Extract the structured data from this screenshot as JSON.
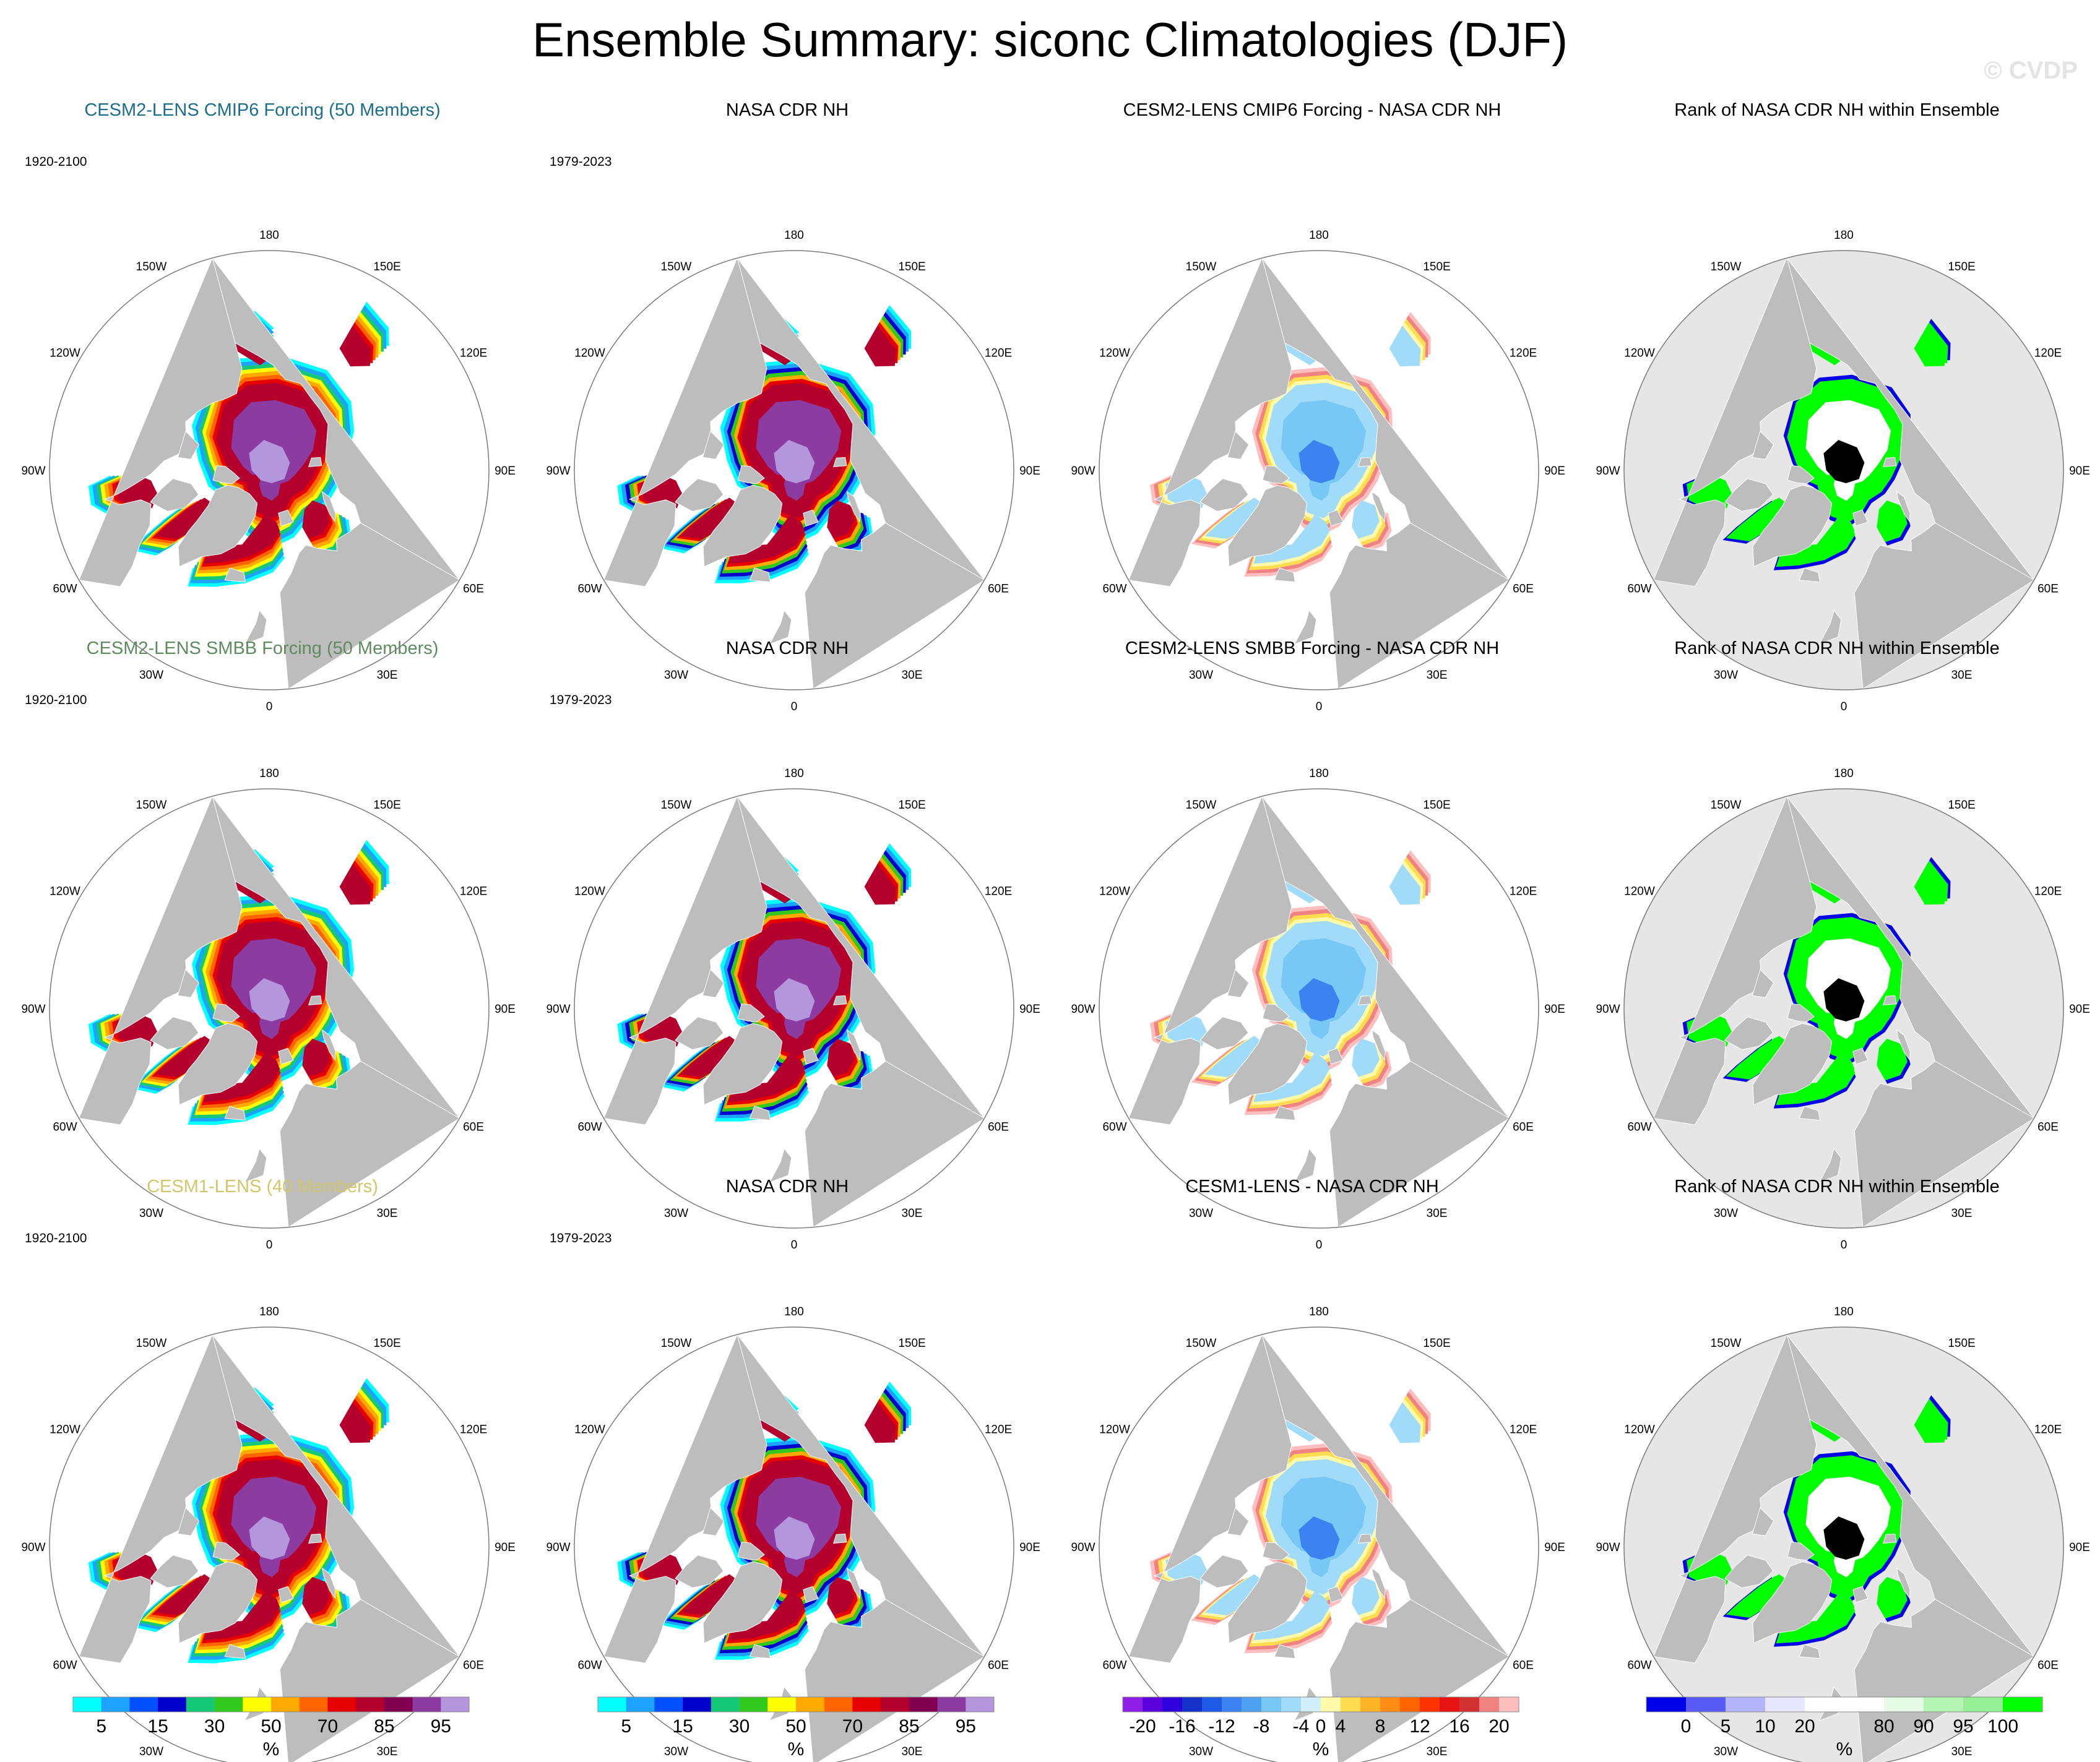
{
  "title": "Ensemble Summary: siconc Climatologies (DJF)",
  "watermark": "© CVDP",
  "colors": {
    "land": "#bdbdbd",
    "ocean": "#ffffff",
    "rank_background": "#e6e6e6",
    "title_cmip6": "#1b6e8c",
    "title_smbb": "#5e8c5e",
    "title_cesm1": "#d2c66a"
  },
  "lon_labels": [
    "180",
    "150E",
    "120E",
    "90E",
    "60E",
    "30E",
    "0",
    "30W",
    "60W",
    "90W",
    "120W",
    "150W"
  ],
  "rows": [
    {
      "ensemble": {
        "title": "CESM2-LENS CMIP6 Forcing (50 Members)",
        "period": "1920-2100",
        "title_color": "#1b6e8c"
      },
      "obs": {
        "title": "NASA CDR NH",
        "period": "1979-2023"
      },
      "diff": {
        "title": "CESM2-LENS CMIP6 Forcing - NASA CDR NH"
      },
      "rank": {
        "title": "Rank of NASA CDR NH within Ensemble"
      }
    },
    {
      "ensemble": {
        "title": "CESM2-LENS SMBB Forcing (50 Members)",
        "period": "1920-2100",
        "title_color": "#5e8c5e"
      },
      "obs": {
        "title": "NASA CDR NH",
        "period": "1979-2023"
      },
      "diff": {
        "title": "CESM2-LENS SMBB Forcing - NASA CDR NH"
      },
      "rank": {
        "title": "Rank of NASA CDR NH within Ensemble"
      }
    },
    {
      "ensemble": {
        "title": "CESM1-LENS (40 Members)",
        "period": "1920-2100",
        "title_color": "#d2c66a"
      },
      "obs": {
        "title": "NASA CDR NH",
        "period": "1979-2023"
      },
      "diff": {
        "title": "CESM1-LENS - NASA CDR NH"
      },
      "rank": {
        "title": "Rank of NASA CDR NH within Ensemble"
      }
    }
  ],
  "colorbars": [
    {
      "unit": "%",
      "colors": [
        "#00ffff",
        "#1ea2ff",
        "#0050ff",
        "#0000cd",
        "#14c878",
        "#32c81e",
        "#ffff00",
        "#ffaa00",
        "#ff6400",
        "#e60000",
        "#b4002d",
        "#820050",
        "#8c3ca0",
        "#b496dc"
      ],
      "labels": [
        {
          "text": "5",
          "after": 1
        },
        {
          "text": "15",
          "after": 3
        },
        {
          "text": "30",
          "after": 5
        },
        {
          "text": "50",
          "after": 7
        },
        {
          "text": "70",
          "after": 9
        },
        {
          "text": "85",
          "after": 11
        },
        {
          "text": "95",
          "after": 13
        }
      ]
    },
    {
      "unit": "%",
      "colors": [
        "#00ffff",
        "#1ea2ff",
        "#0050ff",
        "#0000cd",
        "#14c878",
        "#32c81e",
        "#ffff00",
        "#ffaa00",
        "#ff6400",
        "#e60000",
        "#b4002d",
        "#820050",
        "#8c3ca0",
        "#b496dc"
      ],
      "labels": [
        {
          "text": "5",
          "after": 1
        },
        {
          "text": "15",
          "after": 3
        },
        {
          "text": "30",
          "after": 5
        },
        {
          "text": "50",
          "after": 7
        },
        {
          "text": "70",
          "after": 9
        },
        {
          "text": "85",
          "after": 11
        },
        {
          "text": "95",
          "after": 13
        }
      ]
    },
    {
      "unit": "%",
      "colors": [
        "#8c1ee6",
        "#5a00dc",
        "#2d00dc",
        "#1432c8",
        "#1e5ae6",
        "#3c82f0",
        "#50a0f0",
        "#78c8f5",
        "#a0dcfa",
        "#d2f0fc",
        "#fffaaa",
        "#ffdc50",
        "#ffb428",
        "#ff8c14",
        "#ff6400",
        "#ff3200",
        "#e61414",
        "#d23232",
        "#f08282",
        "#ffbebe"
      ],
      "labels": [
        {
          "text": "-20",
          "after": 1
        },
        {
          "text": "-16",
          "after": 3
        },
        {
          "text": "-12",
          "after": 5
        },
        {
          "text": "-8",
          "after": 7
        },
        {
          "text": "-4",
          "after": 9
        },
        {
          "text": "0",
          "after": 10
        },
        {
          "text": "4",
          "after": 11
        },
        {
          "text": "8",
          "after": 13
        },
        {
          "text": "12",
          "after": 15
        },
        {
          "text": "16",
          "after": 17
        },
        {
          "text": "20",
          "after": 19
        }
      ]
    },
    {
      "unit": "%",
      "colors": [
        "#0000e6",
        "#5a5af5",
        "#b4b4fa",
        "#e6e6fc",
        "#ffffff",
        "#ffffff",
        "#e6fce6",
        "#b4f5b4",
        "#96f096",
        "#00ff00"
      ],
      "labels": [
        {
          "text": "0",
          "after": 1
        },
        {
          "text": "5",
          "after": 2
        },
        {
          "text": "10",
          "after": 3
        },
        {
          "text": "20",
          "after": 4
        },
        {
          "text": "80",
          "after": 6
        },
        {
          "text": "90",
          "after": 7
        },
        {
          "text": "95",
          "after": 8
        },
        {
          "text": "100",
          "after": 9
        }
      ]
    }
  ]
}
